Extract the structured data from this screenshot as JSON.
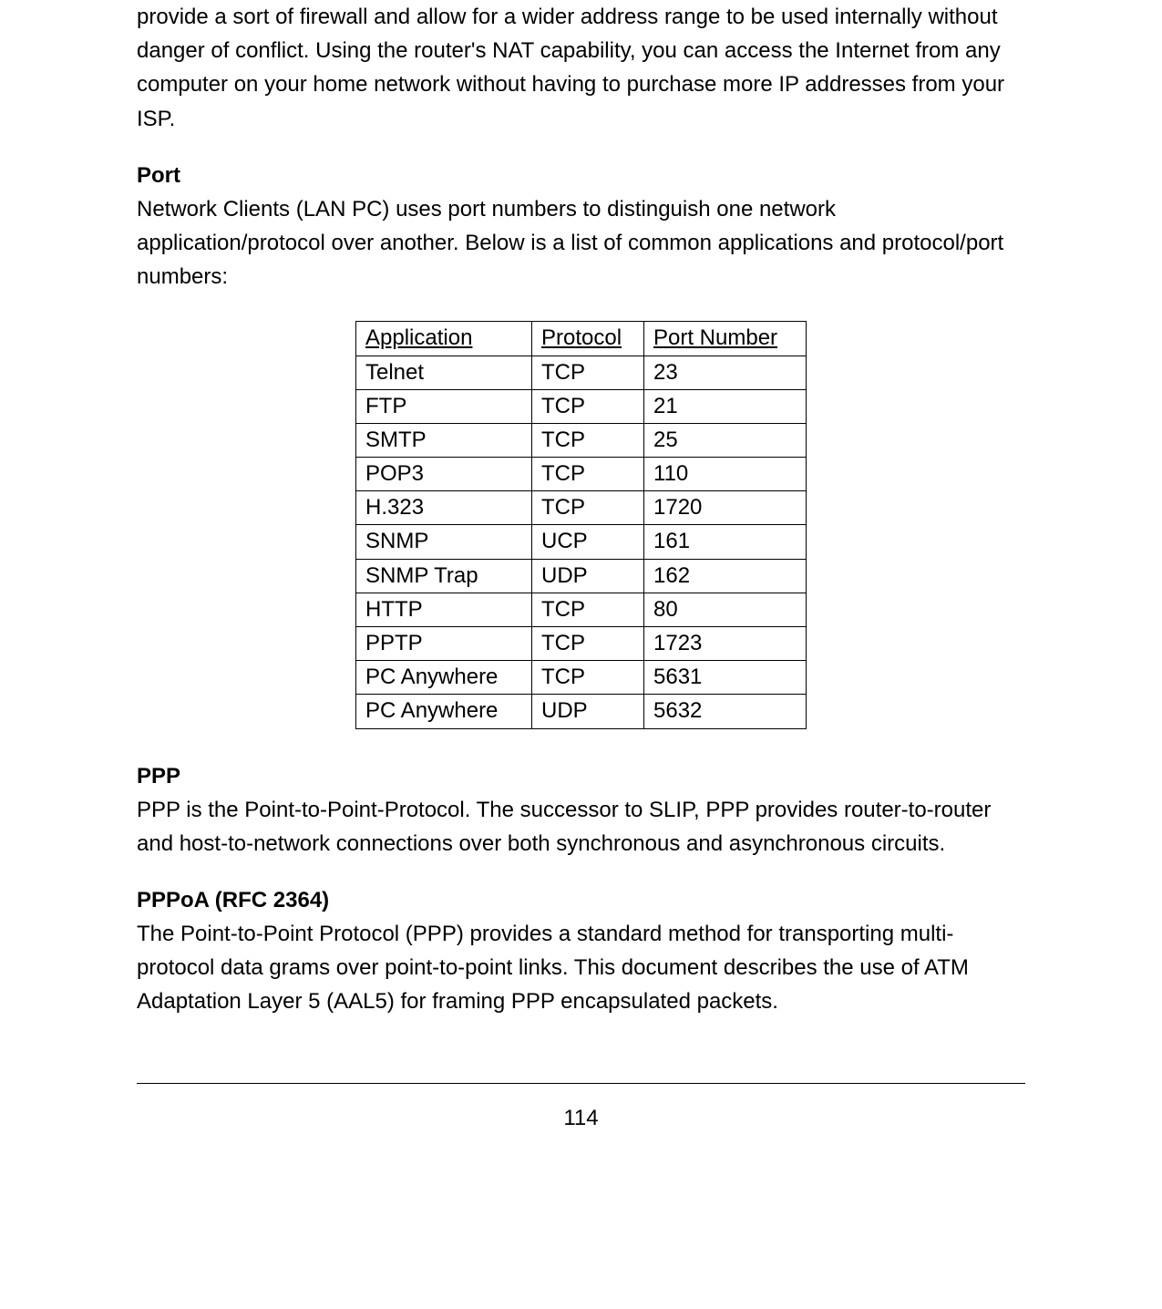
{
  "intro_para": "provide a sort of firewall and allow for a wider address range to be used internally without danger of conflict. Using the router's NAT capability, you can access the Internet from any computer on your home network without having to purchase more IP addresses from your ISP.",
  "port_section": {
    "heading": "Port",
    "body": "Network Clients (LAN PC) uses port numbers to distinguish one network application/protocol over another. Below is a list of common applications and protocol/port numbers:"
  },
  "port_table": {
    "headers": {
      "application": "Application",
      "protocol": "Protocol",
      "port_number": "Port Number"
    },
    "rows": [
      {
        "app": "Telnet",
        "proto": "TCP",
        "port": "23"
      },
      {
        "app": "FTP",
        "proto": "TCP",
        "port": "21"
      },
      {
        "app": "SMTP",
        "proto": "TCP",
        "port": "25"
      },
      {
        "app": "POP3",
        "proto": "TCP",
        "port": "110"
      },
      {
        "app": "H.323",
        "proto": "TCP",
        "port": "1720"
      },
      {
        "app": "SNMP",
        "proto": "UCP",
        "port": "161"
      },
      {
        "app": "SNMP Trap",
        "proto": "UDP",
        "port": "162"
      },
      {
        "app": "HTTP",
        "proto": "TCP",
        "port": "80"
      },
      {
        "app": "PPTP",
        "proto": "TCP",
        "port": "1723"
      },
      {
        "app": "PC Anywhere",
        "proto": "TCP",
        "port": "5631"
      },
      {
        "app": "PC Anywhere",
        "proto": "UDP",
        "port": "5632"
      }
    ]
  },
  "ppp_section": {
    "heading": "PPP",
    "body": "PPP is the Point-to-Point-Protocol. The successor to SLIP, PPP provides router-to-router and host-to-network connections over both synchronous and asynchronous circuits."
  },
  "pppoa_section": {
    "heading": "PPPoA (RFC 2364)",
    "body": "The Point-to-Point Protocol (PPP) provides a standard method for transporting multi-protocol data grams over point-to-point links. This document describes the use of ATM Adaptation Layer 5 (AAL5) for framing PPP encapsulated packets."
  },
  "page_number": "114"
}
